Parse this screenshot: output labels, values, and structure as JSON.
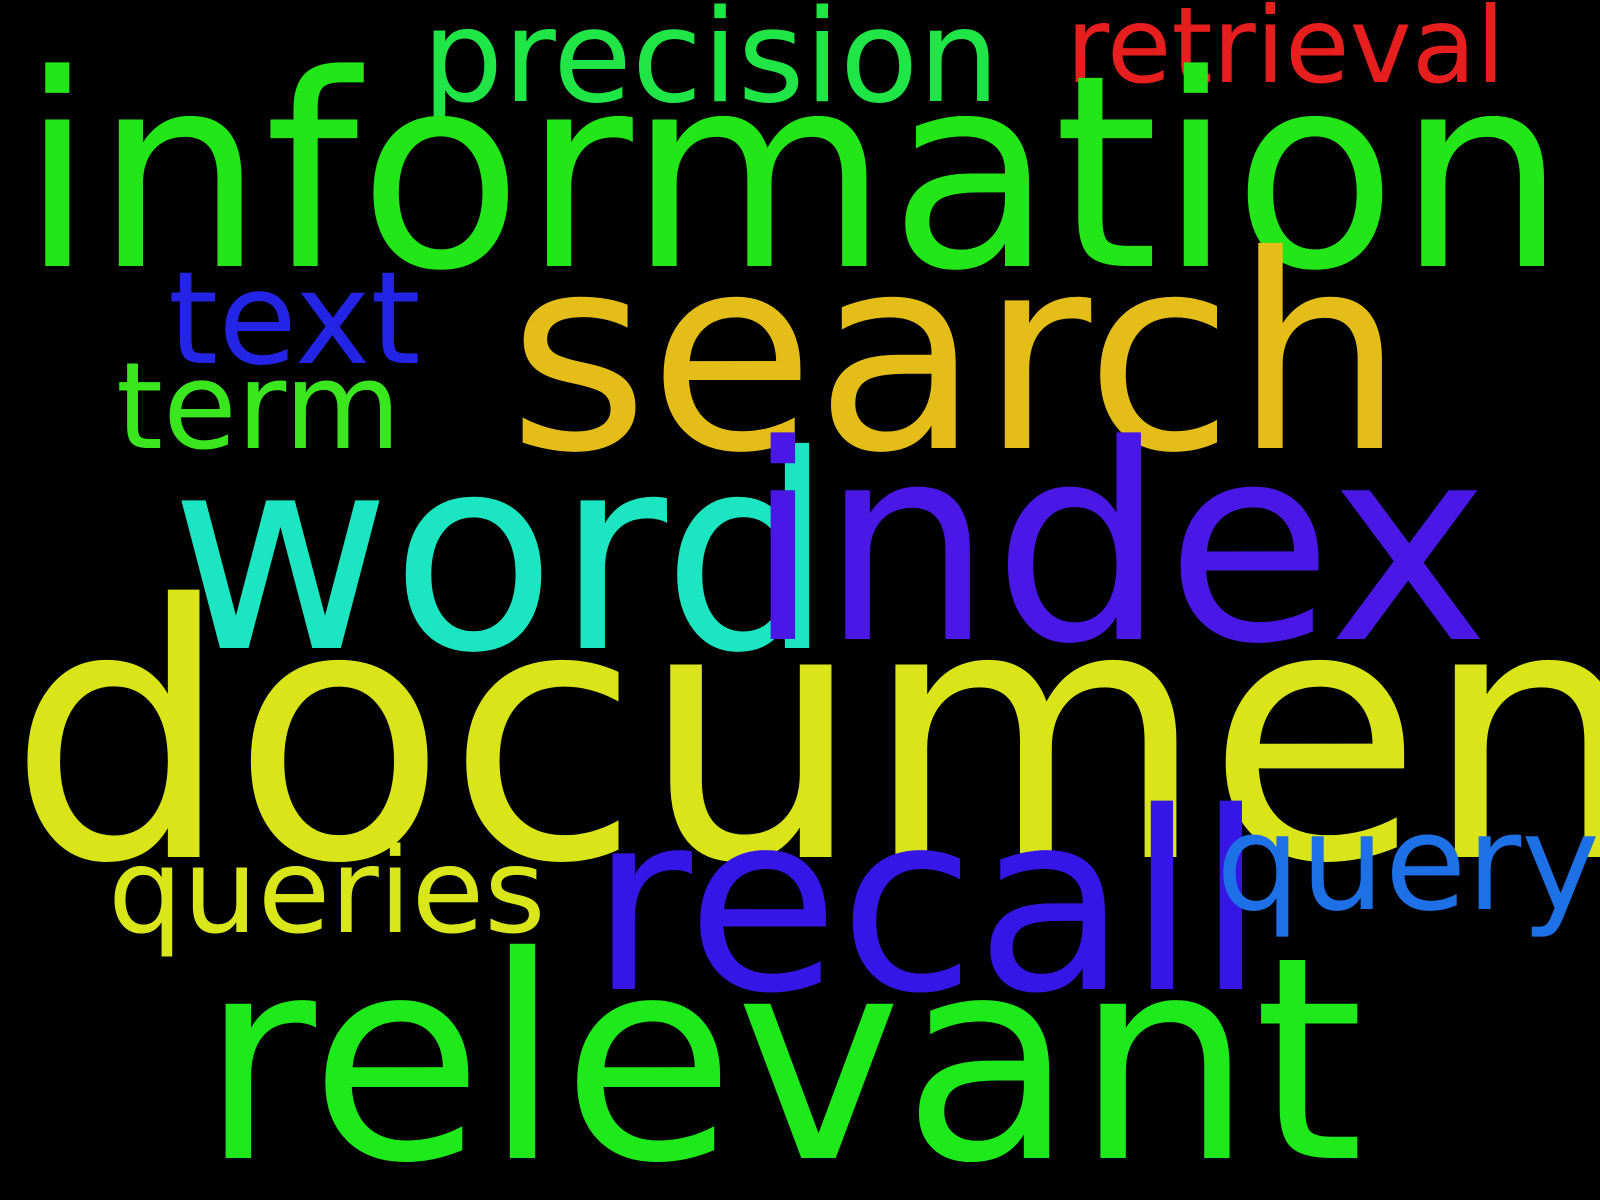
{
  "background_color": "#000000",
  "words": {
    "information": {
      "text": "information",
      "color": "#22e617"
    },
    "document": {
      "text": "document",
      "color": "#d9e519"
    },
    "search": {
      "text": "search",
      "color": "#e5bd19"
    },
    "index": {
      "text": "index",
      "color": "#4a18e6"
    },
    "word": {
      "text": "word",
      "color": "#1ce6c1"
    },
    "relevant": {
      "text": "relevant",
      "color": "#1ee91a"
    },
    "recall": {
      "text": "recall",
      "color": "#3516e6"
    },
    "precision": {
      "text": "precision",
      "color": "#1fe646"
    },
    "retrieval": {
      "text": "retrieval",
      "color": "#e61e1e"
    },
    "text": {
      "text": "text",
      "color": "#2424e6"
    },
    "term": {
      "text": "term",
      "color": "#3ae61e"
    },
    "queries": {
      "text": "queries",
      "color": "#d9e619"
    },
    "query": {
      "text": "query",
      "color": "#1e70e6"
    }
  }
}
